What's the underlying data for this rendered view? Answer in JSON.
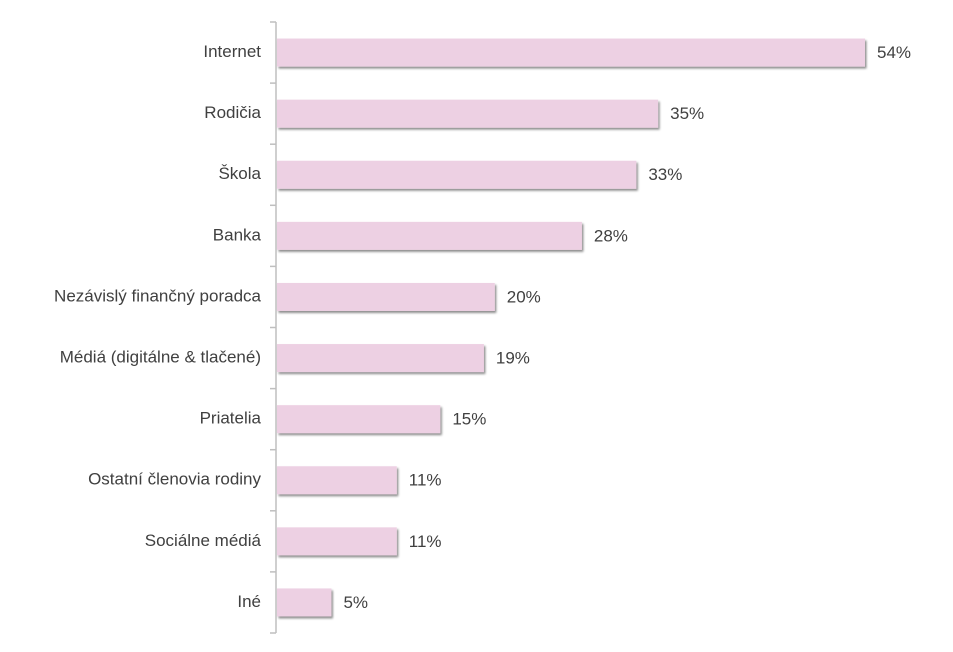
{
  "chart_data": {
    "type": "bar",
    "orientation": "horizontal",
    "categories": [
      "Internet",
      "Rodičia",
      "Škola",
      "Banka",
      "Nezávislý finančný poradca",
      "Médiá (digitálne & tlačené)",
      "Priatelia",
      "Ostatní členovia rodiny",
      "Sociálne médiá",
      "Iné"
    ],
    "values": [
      54,
      35,
      33,
      28,
      20,
      19,
      15,
      11,
      11,
      5
    ],
    "value_labels": [
      "54%",
      "35%",
      "33%",
      "28%",
      "20%",
      "19%",
      "15%",
      "11%",
      "11%",
      "5%"
    ],
    "color": "#edd0e3"
  }
}
